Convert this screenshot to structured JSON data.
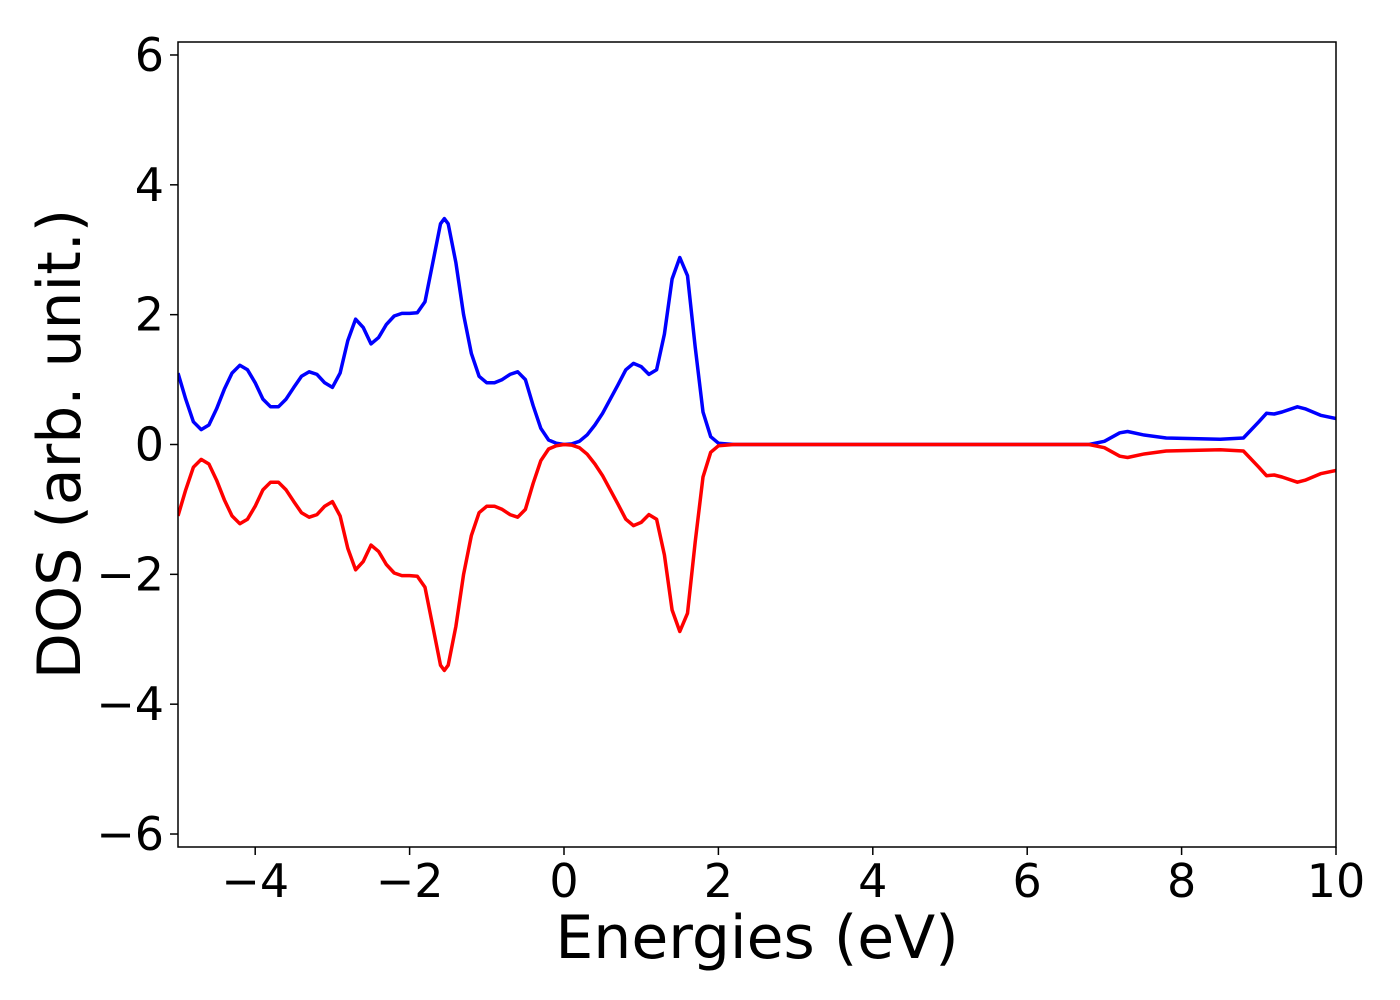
{
  "chart_data": {
    "type": "line",
    "xlabel": "Energies (eV)",
    "ylabel": "DOS (arb. unit.)",
    "x": [
      -5,
      -4.9,
      -4.8,
      -4.7,
      -4.6,
      -4.5,
      -4.4,
      -4.3,
      -4.2,
      -4.1,
      -4,
      -3.9,
      -3.8,
      -3.7,
      -3.6,
      -3.5,
      -3.4,
      -3.3,
      -3.2,
      -3.1,
      -3,
      -2.9,
      -2.8,
      -2.7,
      -2.6,
      -2.5,
      -2.4,
      -2.3,
      -2.2,
      -2.1,
      -2,
      -1.9,
      -1.8,
      -1.7,
      -1.6,
      -1.55,
      -1.5,
      -1.4,
      -1.3,
      -1.2,
      -1.1,
      -1,
      -0.9,
      -0.8,
      -0.7,
      -0.6,
      -0.5,
      -0.4,
      -0.3,
      -0.2,
      -0.1,
      0,
      0.1,
      0.2,
      0.3,
      0.4,
      0.5,
      0.6,
      0.7,
      0.8,
      0.9,
      1,
      1.1,
      1.2,
      1.3,
      1.4,
      1.5,
      1.6,
      1.7,
      1.8,
      1.9,
      2,
      2.2,
      6.8,
      7,
      7.2,
      7.3,
      7.5,
      7.8,
      8.5,
      8.8,
      9,
      9.1,
      9.2,
      9.3,
      9.5,
      9.6,
      9.8,
      10
    ],
    "series": [
      {
        "color": "#0000ff",
        "values": [
          1.1,
          0.7,
          0.35,
          0.23,
          0.3,
          0.55,
          0.85,
          1.1,
          1.22,
          1.15,
          0.95,
          0.7,
          0.58,
          0.58,
          0.7,
          0.88,
          1.05,
          1.12,
          1.08,
          0.95,
          0.88,
          1.1,
          1.6,
          1.93,
          1.8,
          1.55,
          1.65,
          1.85,
          1.98,
          2.02,
          2.02,
          2.03,
          2.2,
          2.8,
          3.4,
          3.48,
          3.4,
          2.8,
          2.0,
          1.4,
          1.05,
          0.95,
          0.95,
          1.0,
          1.08,
          1.12,
          1.0,
          0.6,
          0.25,
          0.07,
          0.02,
          0,
          0.01,
          0.05,
          0.15,
          0.3,
          0.48,
          0.7,
          0.92,
          1.15,
          1.25,
          1.2,
          1.08,
          1.15,
          1.7,
          2.55,
          2.88,
          2.6,
          1.5,
          0.5,
          0.12,
          0.02,
          0,
          0,
          0.05,
          0.18,
          0.2,
          0.15,
          0.1,
          0.08,
          0.1,
          0.35,
          0.48,
          0.47,
          0.5,
          0.58,
          0.55,
          0.45,
          0.4
        ]
      },
      {
        "color": "#ff0000",
        "values": [
          -1.1,
          -0.7,
          -0.35,
          -0.23,
          -0.3,
          -0.55,
          -0.85,
          -1.1,
          -1.22,
          -1.15,
          -0.95,
          -0.7,
          -0.58,
          -0.58,
          -0.7,
          -0.88,
          -1.05,
          -1.12,
          -1.08,
          -0.95,
          -0.88,
          -1.1,
          -1.6,
          -1.93,
          -1.8,
          -1.55,
          -1.65,
          -1.85,
          -1.98,
          -2.02,
          -2.02,
          -2.03,
          -2.2,
          -2.8,
          -3.4,
          -3.48,
          -3.4,
          -2.8,
          -2.0,
          -1.4,
          -1.05,
          -0.95,
          -0.95,
          -1.0,
          -1.08,
          -1.12,
          -1.0,
          -0.6,
          -0.25,
          -0.07,
          -0.02,
          0,
          -0.01,
          -0.05,
          -0.15,
          -0.3,
          -0.48,
          -0.7,
          -0.92,
          -1.15,
          -1.25,
          -1.2,
          -1.08,
          -1.15,
          -1.7,
          -2.55,
          -2.88,
          -2.6,
          -1.5,
          -0.5,
          -0.12,
          -0.02,
          0,
          0,
          -0.05,
          -0.18,
          -0.2,
          -0.15,
          -0.1,
          -0.08,
          -0.1,
          -0.35,
          -0.48,
          -0.47,
          -0.5,
          -0.58,
          -0.55,
          -0.45,
          -0.4
        ]
      }
    ],
    "xlim": [
      -5,
      10
    ],
    "xticks": [
      {
        "value": -4,
        "label": "−4"
      },
      {
        "value": -2,
        "label": "−2"
      },
      0,
      2,
      4,
      6,
      8,
      10
    ],
    "ylim": [
      -6.2,
      6.2
    ],
    "yticks": [
      {
        "value": -6,
        "label": "−6"
      },
      {
        "value": -4,
        "label": "−4"
      },
      {
        "value": -2,
        "label": "−2"
      },
      0,
      2,
      4,
      6
    ]
  }
}
